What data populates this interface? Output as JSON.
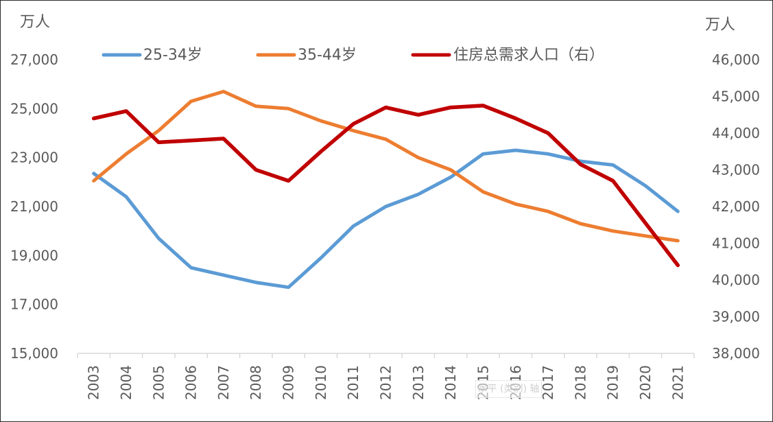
{
  "chart_data": {
    "type": "line",
    "title": "",
    "xlabel": "",
    "ylabel_left": "万人",
    "ylabel_right": "万人",
    "ylim_left": [
      15000,
      27000
    ],
    "ylim_right": [
      38000,
      46000
    ],
    "yticks_left": [
      "27,000",
      "25,000",
      "23,000",
      "21,000",
      "19,000",
      "17,000",
      "15,000"
    ],
    "yticks_left_values": [
      27000,
      25000,
      23000,
      21000,
      19000,
      17000,
      15000
    ],
    "yticks_right": [
      "46,000",
      "45,000",
      "44,000",
      "43,000",
      "42,000",
      "41,000",
      "40,000",
      "39,000",
      "38,000"
    ],
    "yticks_right_values": [
      46000,
      45000,
      44000,
      43000,
      42000,
      41000,
      40000,
      39000,
      38000
    ],
    "grid": false,
    "legend_position": "top",
    "categories": [
      "2003",
      "2004",
      "2005",
      "2006",
      "2007",
      "2008",
      "2009",
      "2010",
      "2011",
      "2012",
      "2013",
      "2014",
      "2015",
      "2016",
      "2017",
      "2018",
      "2019",
      "2020",
      "2021"
    ],
    "series": [
      {
        "name": "25-34岁",
        "axis": "left",
        "color": "#5B9BD5",
        "values": [
          22350,
          21400,
          19700,
          18500,
          18200,
          17900,
          17700,
          18900,
          20200,
          21000,
          21500,
          22200,
          23150,
          23300,
          23150,
          22850,
          22700,
          21850,
          20800
        ]
      },
      {
        "name": "35-44岁",
        "axis": "left",
        "color": "#ED7D31",
        "values": [
          22050,
          23150,
          24100,
          25300,
          25700,
          25100,
          25000,
          24500,
          24100,
          23750,
          23000,
          22500,
          21600,
          21100,
          20800,
          20300,
          20000,
          19800,
          19600
        ]
      },
      {
        "name": "住房总需求人口（右）",
        "axis": "right",
        "color": "#C00000",
        "values": [
          44400,
          44600,
          43750,
          43800,
          43850,
          43000,
          42700,
          43500,
          44250,
          44700,
          44500,
          44700,
          44750,
          44400,
          44000,
          43150,
          42700,
          41550,
          40400
        ]
      }
    ]
  },
  "tooltip": "水平 (类别) 轴"
}
